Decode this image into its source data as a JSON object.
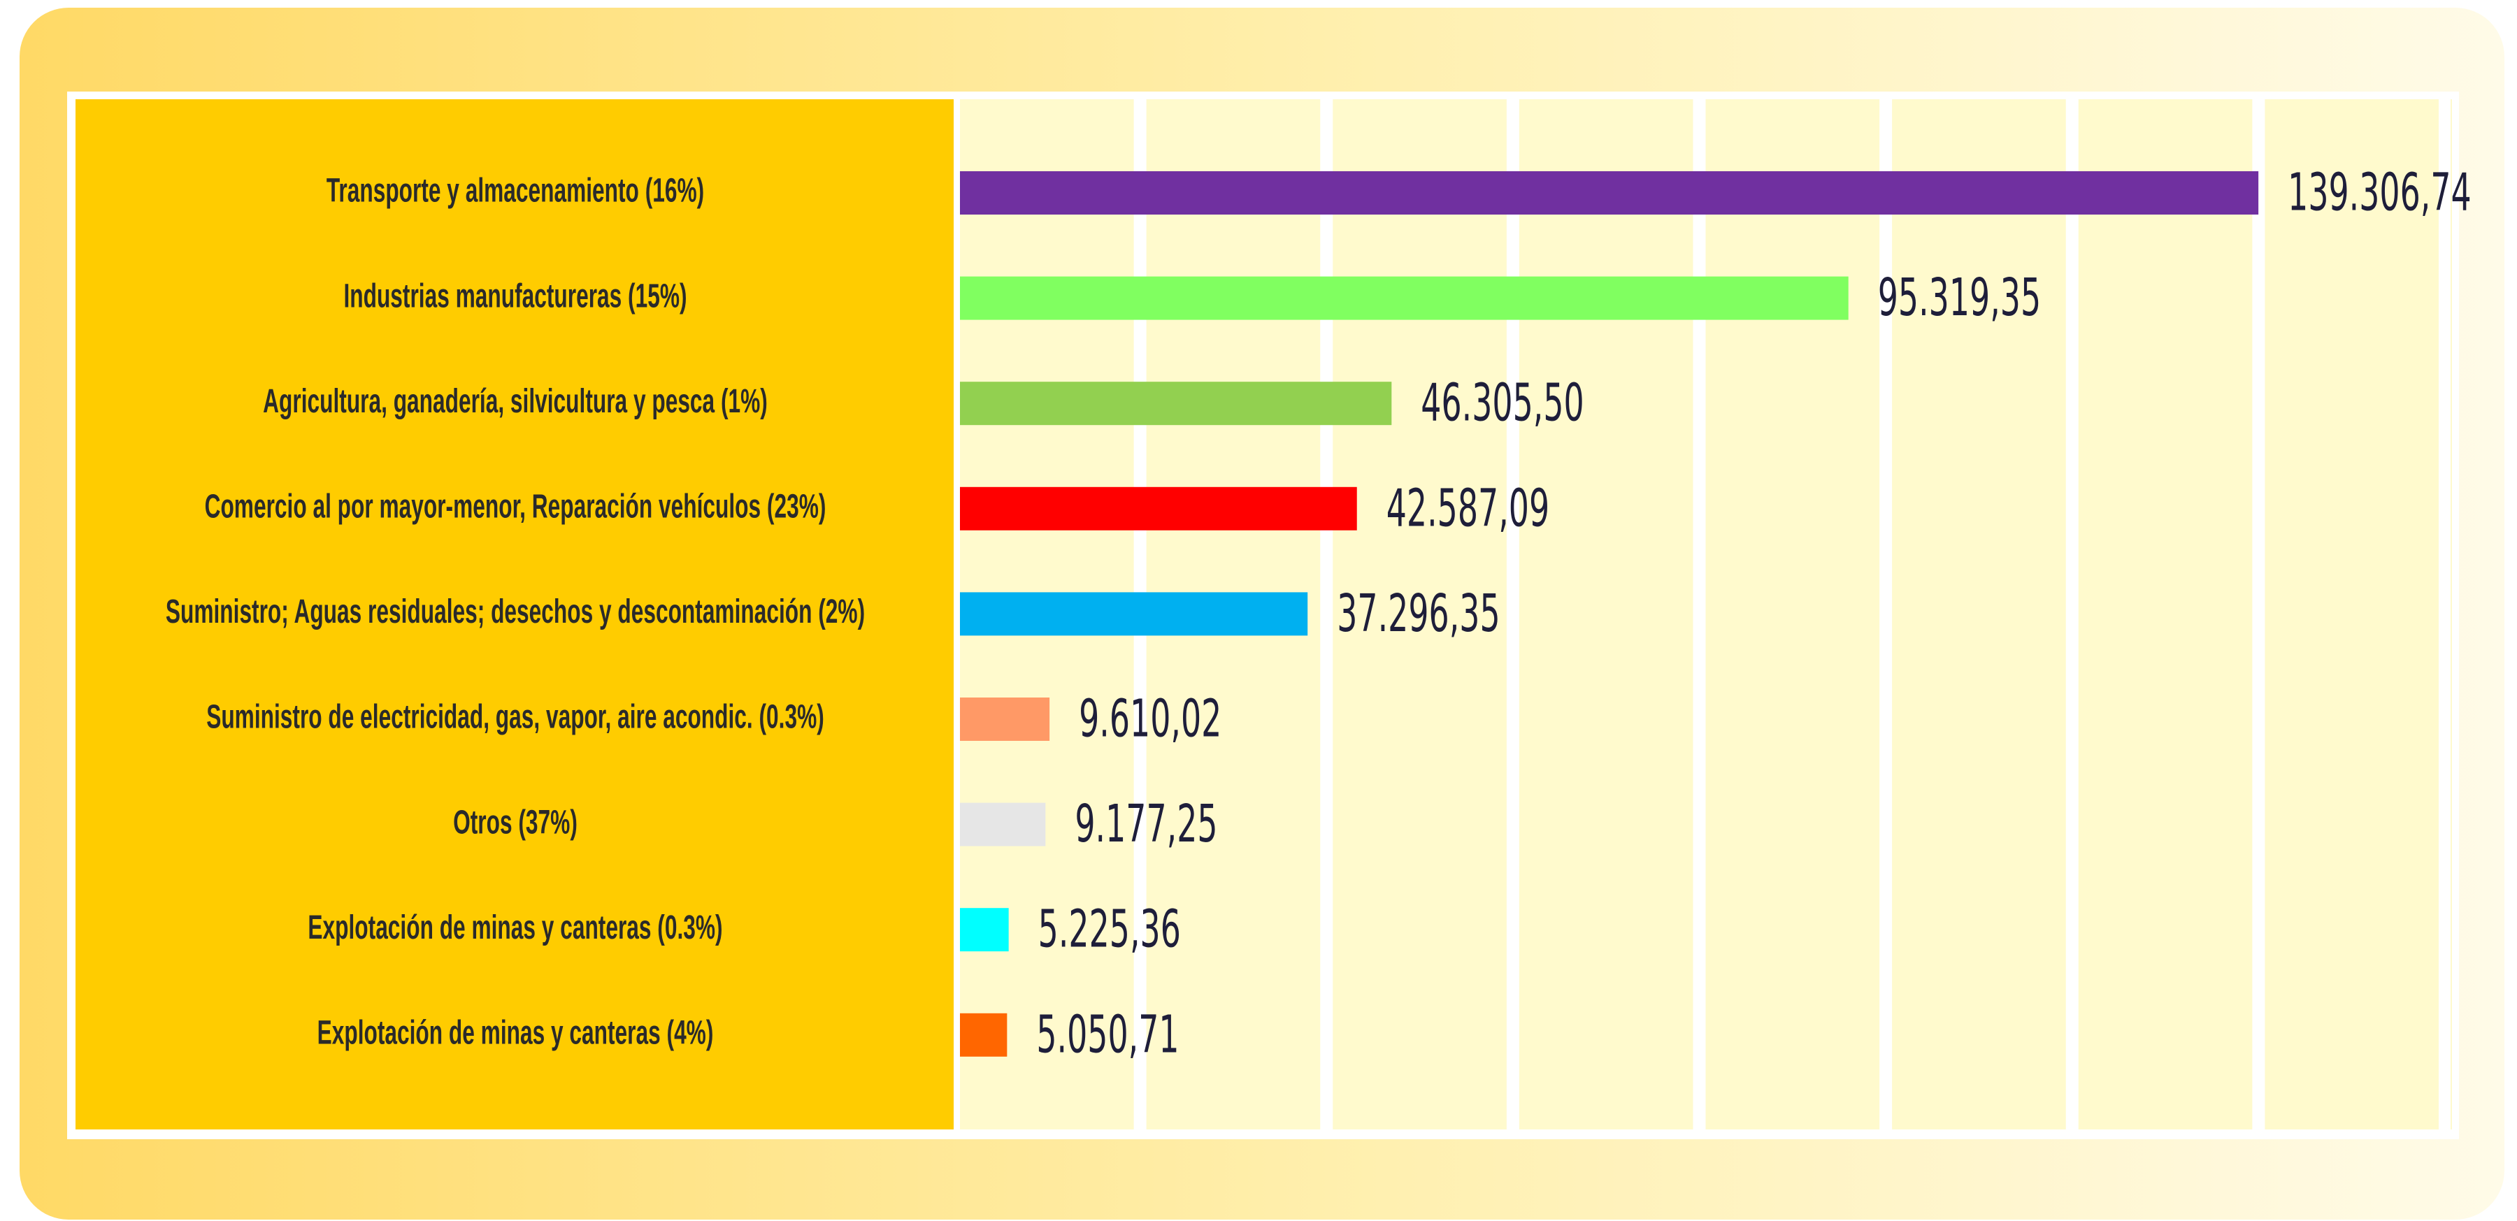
{
  "chart_data": {
    "type": "barh",
    "categories": [
      "Transporte y almacenamiento (16%)",
      "Industrias manufactureras (15%)",
      "Agricultura, ganadería, silvicultura y pesca (1%)",
      "Comercio al por mayor-menor, Reparación vehículos (23%)",
      "Suministro; Aguas residuales; desechos y descontaminación  (2%)",
      "Suministro de electricidad, gas, vapor, aire acondic.  (0.3%)",
      "Otros (37%)",
      "Explotación de minas y canteras (0.3%)",
      "Explotación de minas y canteras (4%)"
    ],
    "values": [
      139306.74,
      95319.35,
      46305.5,
      42587.09,
      37296.35,
      9610.02,
      9177.25,
      5225.36,
      5050.71
    ],
    "value_labels": [
      "139.306,74",
      "95.319,35",
      "46.305,50",
      "42.587,09",
      "37.296,35",
      "9.610,02",
      "9.177,25",
      "5.225,36",
      "5.050,71"
    ],
    "colors": [
      "#7030a0",
      "#80ff60",
      "#92d050",
      "#ff0000",
      "#00b0f0",
      "#ff9966",
      "#e6e6e6",
      "#00ffff",
      "#ff6600"
    ],
    "xlim": [
      0,
      160000
    ],
    "xticks": [
      0,
      20000,
      40000,
      60000,
      80000,
      100000,
      120000,
      140000,
      160000
    ],
    "grid": true
  }
}
